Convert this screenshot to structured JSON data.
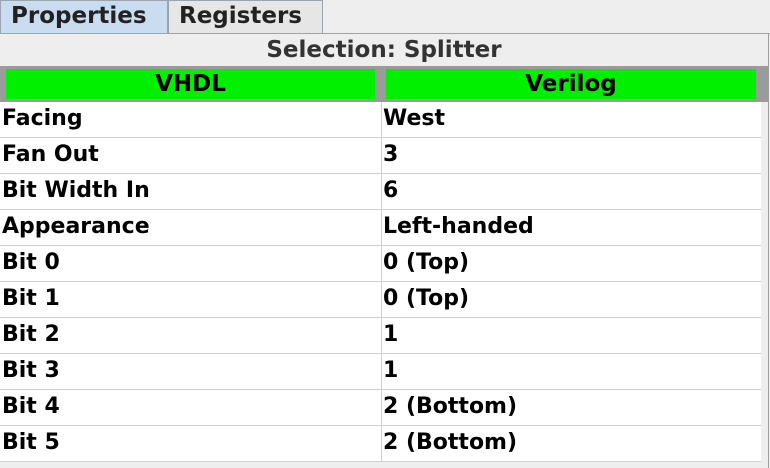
{
  "tabs": [
    {
      "label": "Properties"
    },
    {
      "label": "Registers"
    }
  ],
  "selection_title": "Selection: Splitter",
  "hdl_buttons": {
    "vhdl": "VHDL",
    "verilog": "Verilog"
  },
  "properties": [
    {
      "name": "Facing",
      "value": "West"
    },
    {
      "name": "Fan Out",
      "value": "3"
    },
    {
      "name": "Bit Width In",
      "value": "6"
    },
    {
      "name": "Appearance",
      "value": "Left-handed"
    },
    {
      "name": "Bit 0",
      "value": "0 (Top)"
    },
    {
      "name": "Bit 1",
      "value": "0 (Top)"
    },
    {
      "name": "Bit 2",
      "value": "1"
    },
    {
      "name": "Bit 3",
      "value": "1"
    },
    {
      "name": "Bit 4",
      "value": "2 (Bottom)"
    },
    {
      "name": "Bit 5",
      "value": "2 (Bottom)"
    }
  ],
  "colors": {
    "active_tab": "#c9dcf0",
    "hdl_button": "#00f000"
  }
}
